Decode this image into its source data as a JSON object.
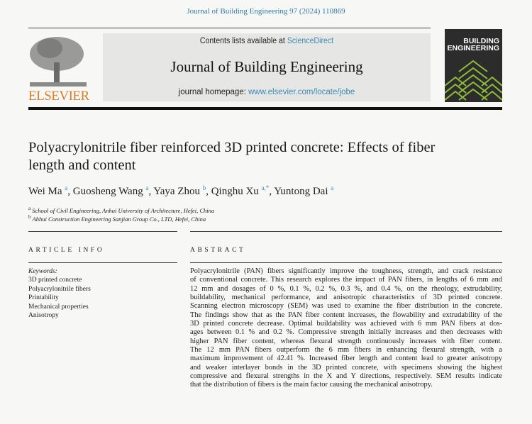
{
  "citation": "Journal of Building Engineering 97 (2024) 110869",
  "header": {
    "contents_prefix": "Contents lists available at ",
    "contents_link": "ScienceDirect",
    "journal_title": "Journal of Building Engineering",
    "homepage_prefix": "journal homepage: ",
    "homepage_link": "www.elsevier.com/locate/jobe",
    "publisher": "ELSEVIER",
    "cover_line1": "BUILDING",
    "cover_line2": "ENGINEERING"
  },
  "article": {
    "title": "Polyacrylonitrile fiber reinforced 3D printed concrete: Effects of fiber length and content",
    "authors": [
      {
        "name": "Wei Ma",
        "aff": "a"
      },
      {
        "name": "Guosheng Wang",
        "aff": "a"
      },
      {
        "name": "Yaya Zhou",
        "aff": "b"
      },
      {
        "name": "Qinghu Xu",
        "aff": "a,*"
      },
      {
        "name": "Yuntong Dai",
        "aff": "a"
      }
    ],
    "affiliations": [
      {
        "mark": "a",
        "text": "School of Civil Engineering, Anhui University of Architecture, Hefei, China"
      },
      {
        "mark": "b",
        "text": "Ahhui Construction Engineering Sanjian Group Co., LTD, Hefei, China"
      }
    ]
  },
  "article_info": {
    "heading": "ARTICLE INFO",
    "keywords_label": "Keywords:",
    "keywords": [
      "3D printed concrete",
      "Polyacrylonitrile fibers",
      "Printability",
      "Mechanical properties",
      "Anisotropy"
    ]
  },
  "abstract": {
    "heading": "ABSTRACT",
    "lines": [
      "Polyacrylonitrile (PAN) fibers significantly improve the toughness, strength, and crack resistance",
      "of conventional concrete. This research explores the impact of PAN fibers, in lengths of 6 mm and",
      "12 mm and dosages of 0 %, 0.1 %, 0.2 %, 0.3 %, and 0.4 %, on the rheology, extrudability,",
      "buildability, mechanical performance, and anisotropic characteristics of 3D printed concrete.",
      "Scanning electron microscopy (SEM) was used to examine the fiber distribution in the concrete.",
      "The findings show that as the PAN fiber content increases, the flowability and extrudability of the",
      "3D printed concrete decrease. Optimal buildability was achieved with 6 mm PAN fibers at dos-",
      "ages between 0.1 % and 0.2 %. Compressive strength initially increases and then decreases with",
      "higher PAN fiber content, whereas flexural strength continuously increases with fiber content.",
      "The 12 mm PAN fibers outperform the 6 mm fibers in enhancing flexural strength, with a",
      "maximum improvement of 42.41 %. Increased fiber length and content lead to greater anisotropy",
      "and weaker interlayer bonds in the 3D printed concrete, with specimens showing the highest",
      "compressive and flexural strengths in the X and Y directions, respectively. SEM results indicate",
      "that the distribution of fibers is the main factor causing the mechanical anisotropy."
    ]
  }
}
